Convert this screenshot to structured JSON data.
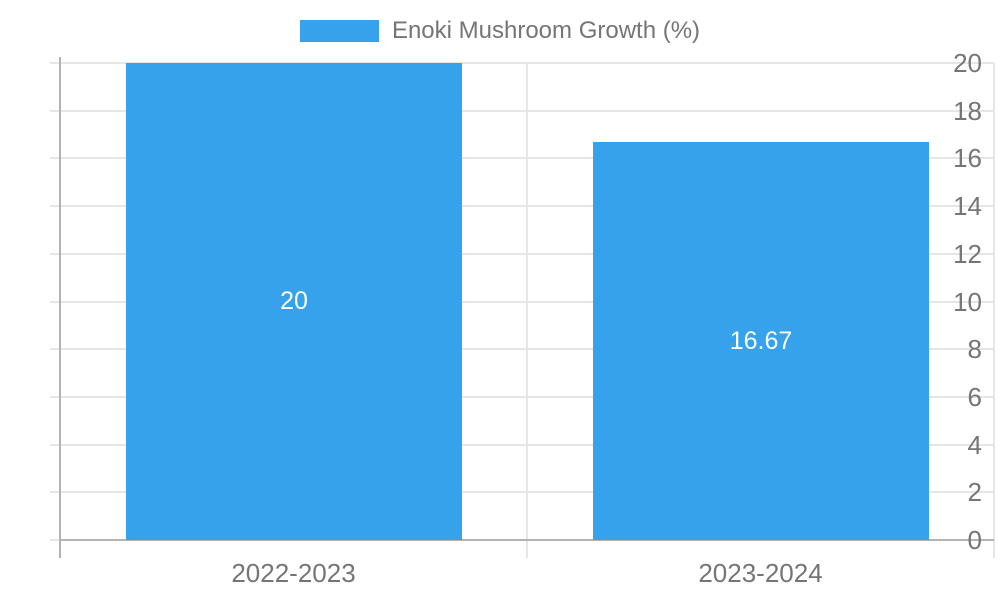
{
  "chart_data": {
    "type": "bar",
    "title": "",
    "xlabel": "",
    "ylabel": "",
    "legend_label": "Enoki Mushroom Growth (%)",
    "legend_position": "top",
    "categories": [
      "2022-2023",
      "2023-2024"
    ],
    "values": [
      20,
      16.67
    ],
    "data_labels": [
      "20",
      "16.67"
    ],
    "ylim": [
      0,
      20
    ],
    "ytick_step": 2,
    "yticks": [
      0,
      2,
      4,
      6,
      8,
      10,
      12,
      14,
      16,
      18,
      20
    ],
    "grid": true,
    "colors": {
      "bar": "#36A2EB",
      "grid": "#E6E6E6",
      "axis": "#B3B3B3",
      "tick_text": "#757575",
      "data_label_text": "#FFFFFF",
      "background": "#FFFFFF"
    }
  }
}
